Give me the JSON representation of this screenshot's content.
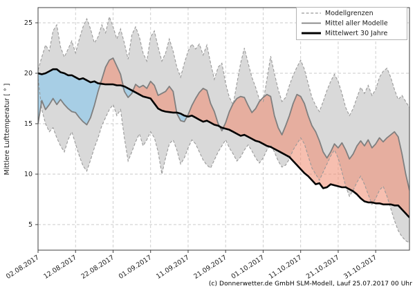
{
  "axes": {
    "ylabel": "Mittlere Lufttemperatur [ ° ]",
    "y_ticks": [
      5,
      10,
      15,
      20,
      25
    ],
    "x_ticks": [
      {
        "day": 0,
        "label": "02.08.2017"
      },
      {
        "day": 10,
        "label": "12.08.2017"
      },
      {
        "day": 20,
        "label": "22.08.2017"
      },
      {
        "day": 30,
        "label": "01.09.2017"
      },
      {
        "day": 40,
        "label": "11.09.2017"
      },
      {
        "day": 50,
        "label": "21.09.2017"
      },
      {
        "day": 60,
        "label": "01.10.2017"
      },
      {
        "day": 70,
        "label": "11.10.2017"
      },
      {
        "day": 80,
        "label": "21.10.2017"
      },
      {
        "day": 90,
        "label": "31.10.2017"
      }
    ]
  },
  "legend": {
    "items": [
      {
        "label": "Modellgrenzen",
        "swatch": "dashed-gray"
      },
      {
        "label": "Mittel aller Modelle",
        "swatch": "solid-gray"
      },
      {
        "label": "Mittelwert 30 Jahre",
        "swatch": "solid-black-thick"
      }
    ]
  },
  "footer": {
    "copyright": "(c) Donnerwetter.de GmbH SLM-Modell, Lauf 25.07.2017 00 Uhr"
  },
  "chart_data": {
    "type": "line",
    "title": "",
    "xlabel": "",
    "ylabel": "Mittlere Lufttemperatur [ ° ]",
    "x_unit": "days since 02.08.2017 (daily values)",
    "x_range_days": [
      0,
      99
    ],
    "ylim": [
      2.5,
      26.5
    ],
    "grid": true,
    "legend_position": "upper right",
    "colors": {
      "band_fill": "#d9d9d9",
      "band_border": "#999999",
      "model_mean_line": "#7f7f7f",
      "mean30_line": "#000000",
      "warmer_fill": "rgba(240,138,112,0.55)",
      "colder_fill": "rgba(158,203,230,0.85)",
      "grid": "#c9c9c9",
      "spine": "#3f3f3f"
    },
    "series": [
      {
        "name": "Modellgrenzen (obere Grenze)",
        "style": "dashed",
        "color": "#999999",
        "values": [
          20.3,
          21.6,
          22.8,
          22.2,
          24.2,
          24.8,
          22.6,
          21.6,
          22.4,
          23.2,
          22.0,
          23.4,
          24.6,
          25.4,
          24.4,
          23.0,
          23.6,
          24.8,
          24.0,
          25.6,
          24.6,
          23.4,
          24.4,
          23.0,
          21.4,
          23.8,
          24.6,
          23.6,
          22.0,
          21.2,
          23.6,
          24.2,
          22.6,
          21.2,
          22.0,
          23.4,
          22.2,
          20.6,
          19.6,
          21.0,
          22.2,
          22.9,
          22.4,
          22.9,
          21.8,
          22.8,
          21.0,
          19.4,
          20.6,
          21.0,
          19.0,
          17.6,
          16.9,
          19.0,
          21.0,
          22.5,
          21.0,
          19.6,
          18.6,
          17.4,
          17.2,
          19.4,
          21.7,
          20.0,
          18.4,
          17.2,
          17.6,
          18.8,
          19.8,
          20.6,
          21.3,
          20.4,
          19.0,
          17.6,
          16.8,
          16.2,
          17.2,
          18.3,
          19.2,
          19.9,
          19.2,
          18.0,
          16.6,
          15.8,
          16.5,
          17.6,
          18.6,
          18.0,
          18.8,
          17.8,
          18.4,
          19.6,
          20.2,
          20.5,
          19.6,
          18.4,
          17.4,
          17.8,
          17.2,
          16.6
        ]
      },
      {
        "name": "Modellgrenzen (untere Grenze)",
        "style": "dashed",
        "color": "#999999",
        "values": [
          19.5,
          16.4,
          15.0,
          14.2,
          14.6,
          13.6,
          12.8,
          12.2,
          13.4,
          14.2,
          13.0,
          11.8,
          10.8,
          10.3,
          11.4,
          12.6,
          13.6,
          14.8,
          15.6,
          16.4,
          16.9,
          15.8,
          16.4,
          13.6,
          11.3,
          12.2,
          13.2,
          14.0,
          12.8,
          13.4,
          14.2,
          13.6,
          12.2,
          10.0,
          11.6,
          13.0,
          13.4,
          12.4,
          11.0,
          11.6,
          12.6,
          13.4,
          13.0,
          12.2,
          11.4,
          10.9,
          10.6,
          11.4,
          12.2,
          12.8,
          13.4,
          12.6,
          12.0,
          11.3,
          11.7,
          12.4,
          12.9,
          12.3,
          11.6,
          11.1,
          11.6,
          12.4,
          12.9,
          12.2,
          11.3,
          10.7,
          10.9,
          11.5,
          12.4,
          13.0,
          13.6,
          13.0,
          11.8,
          10.6,
          10.0,
          9.4,
          10.2,
          11.0,
          11.8,
          12.4,
          11.6,
          10.2,
          8.8,
          7.8,
          8.4,
          9.2,
          9.8,
          9.0,
          8.0,
          7.0,
          7.6,
          8.4,
          8.8,
          7.8,
          6.6,
          5.4,
          4.4,
          3.8,
          3.4,
          3.2
        ]
      },
      {
        "name": "Mittel aller Modelle",
        "style": "solid",
        "color": "#7f7f7f",
        "values": [
          15.0,
          17.3,
          16.4,
          16.9,
          17.5,
          16.9,
          17.4,
          16.9,
          16.5,
          16.2,
          16.1,
          15.6,
          15.2,
          14.9,
          15.6,
          16.8,
          18.2,
          19.4,
          20.6,
          21.3,
          21.5,
          20.7,
          19.9,
          18.2,
          17.6,
          18.0,
          18.9,
          18.6,
          18.8,
          18.5,
          19.2,
          18.8,
          17.8,
          18.0,
          18.2,
          18.7,
          18.2,
          16.0,
          15.3,
          15.2,
          15.9,
          16.8,
          17.5,
          18.1,
          18.5,
          18.3,
          17.0,
          16.2,
          15.0,
          14.3,
          15.1,
          16.2,
          17.0,
          17.5,
          17.7,
          17.6,
          16.8,
          16.1,
          16.5,
          17.2,
          17.6,
          17.9,
          17.7,
          15.8,
          14.6,
          13.9,
          14.8,
          15.8,
          17.0,
          17.9,
          17.7,
          17.0,
          15.8,
          14.8,
          14.2,
          13.3,
          12.2,
          11.6,
          12.2,
          13.0,
          12.6,
          13.1,
          12.4,
          11.5,
          12.0,
          12.8,
          13.3,
          12.8,
          13.4,
          12.6,
          13.0,
          13.6,
          13.2,
          13.6,
          13.9,
          14.2,
          13.7,
          12.0,
          10.0,
          8.4
        ]
      },
      {
        "name": "Mittelwert 30 Jahre",
        "style": "solid-thick",
        "color": "#000000",
        "values": [
          20.0,
          19.9,
          20.0,
          20.2,
          20.4,
          20.4,
          20.1,
          20.0,
          19.8,
          19.8,
          19.6,
          19.4,
          19.5,
          19.3,
          19.1,
          19.2,
          19.0,
          18.95,
          18.9,
          18.9,
          18.9,
          18.8,
          18.8,
          18.7,
          18.5,
          18.3,
          18.1,
          17.9,
          17.7,
          17.6,
          17.5,
          17.0,
          16.5,
          16.3,
          16.2,
          16.15,
          16.1,
          16.1,
          16.0,
          15.8,
          15.7,
          15.8,
          15.6,
          15.4,
          15.2,
          15.3,
          15.1,
          14.9,
          14.8,
          14.6,
          14.5,
          14.4,
          14.2,
          14.0,
          13.8,
          13.9,
          13.7,
          13.5,
          13.3,
          13.2,
          13.0,
          12.8,
          12.7,
          12.5,
          12.3,
          12.1,
          11.9,
          11.7,
          11.3,
          10.9,
          10.5,
          10.1,
          9.8,
          9.4,
          9.0,
          9.1,
          8.6,
          8.7,
          9.0,
          8.9,
          8.8,
          8.7,
          8.7,
          8.5,
          8.3,
          8.0,
          7.6,
          7.3,
          7.2,
          7.2,
          7.1,
          7.1,
          7.0,
          7.0,
          7.0,
          6.9,
          6.9,
          6.5,
          6.1,
          5.7
        ]
      }
    ],
    "fills": [
      {
        "name": "Modellgrenzen-Band (Spannweite aller Modelle)",
        "color": "#d9d9d9"
      },
      {
        "name": "Mittel aller Modelle waermer als Mittelwert 30 Jahre",
        "color": "rgba(240,138,112,0.55)"
      },
      {
        "name": "Mittel aller Modelle kaelter als Mittelwert 30 Jahre",
        "color": "rgba(158,203,230,0.85)"
      }
    ]
  }
}
